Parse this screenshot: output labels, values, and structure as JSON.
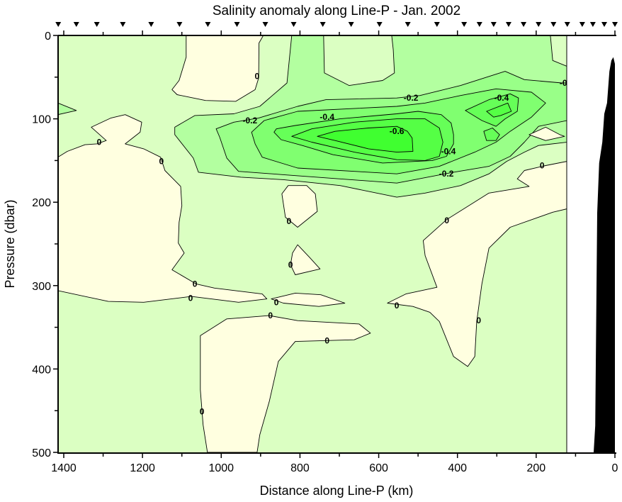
{
  "chart_data": {
    "type": "contour",
    "title": "Salinity anomaly along Line-P - Jan. 2002",
    "xlabel": "Distance along Line-P (km)",
    "ylabel": "Pressure (dbar)",
    "xlim": [
      1414,
      0
    ],
    "ylim": [
      500,
      0
    ],
    "x_reversed": true,
    "y_reversed": true,
    "xticks_major": [
      1400,
      1200,
      1000,
      800,
      600,
      400,
      200,
      0
    ],
    "xticks_minor": [
      1300,
      1100,
      900,
      700,
      500,
      300,
      100
    ],
    "yticks_major": [
      0,
      100,
      200,
      300,
      400,
      500
    ],
    "yticks_minor": [
      50,
      150,
      250,
      350,
      450
    ],
    "grid": false,
    "no_data_km_range": [
      0,
      122
    ],
    "background_fill": "#DBFFC2",
    "levels": [
      {
        "level": 0.0,
        "fill": "#FFFFE0"
      },
      {
        "level": -0.1,
        "fill": "#B3FFA0"
      },
      {
        "level": -0.2,
        "fill": "#99FF88"
      },
      {
        "level": -0.3,
        "fill": "#80FF70"
      },
      {
        "level": -0.4,
        "fill": "#66FF58"
      },
      {
        "level": -0.5,
        "fill": "#55FF45"
      },
      {
        "level": -0.6,
        "fill": "#40FF30"
      }
    ],
    "regions": [
      {
        "level": -0.1,
        "points": [
          [
            821,
            0
          ],
          [
            740,
            0
          ],
          [
            738,
            45
          ],
          [
            675,
            60
          ],
          [
            590,
            54
          ],
          [
            560,
            45
          ],
          [
            563,
            17
          ],
          [
            567,
            0
          ],
          [
            164,
            0
          ],
          [
            158,
            30
          ],
          [
            122,
            37
          ],
          [
            122,
            128
          ],
          [
            194,
            132
          ],
          [
            230,
            140
          ],
          [
            275,
            151
          ],
          [
            320,
            166
          ],
          [
            392,
            180
          ],
          [
            482,
            189
          ],
          [
            554,
            194
          ],
          [
            698,
            180
          ],
          [
            842,
            173
          ],
          [
            950,
            170
          ],
          [
            1058,
            164
          ],
          [
            1071,
            147
          ],
          [
            1118,
            119
          ],
          [
            1118,
            110
          ],
          [
            1067,
            96
          ],
          [
            968,
            94
          ],
          [
            902,
            85
          ],
          [
            833,
            57
          ]
        ]
      },
      {
        "level": -0.1,
        "points": [
          [
            1415,
            81
          ],
          [
            1368,
            90
          ],
          [
            1415,
            95
          ]
        ]
      },
      {
        "level": -0.2,
        "points": [
          [
            1013,
            112
          ],
          [
            968,
            104
          ],
          [
            905,
            99
          ],
          [
            806,
            85
          ],
          [
            734,
            77
          ],
          [
            554,
            75
          ],
          [
            495,
            72
          ],
          [
            392,
            60
          ],
          [
            279,
            43
          ],
          [
            230,
            53
          ],
          [
            135,
            57
          ],
          [
            122,
            57
          ],
          [
            122,
            102
          ],
          [
            194,
            109
          ],
          [
            230,
            128
          ],
          [
            266,
            145
          ],
          [
            320,
            157
          ],
          [
            410,
            164
          ],
          [
            554,
            177
          ],
          [
            842,
            167
          ],
          [
            956,
            163
          ],
          [
            986,
            147
          ],
          [
            1004,
            122
          ]
        ]
      },
      {
        "level": -0.3,
        "points": [
          [
            923,
            116
          ],
          [
            891,
            102
          ],
          [
            806,
            91
          ],
          [
            554,
            85
          ],
          [
            482,
            81
          ],
          [
            392,
            72
          ],
          [
            302,
            64
          ],
          [
            212,
            68
          ],
          [
            176,
            81
          ],
          [
            212,
            98
          ],
          [
            266,
            115
          ],
          [
            302,
            128
          ],
          [
            356,
            140
          ],
          [
            446,
            157
          ],
          [
            554,
            166
          ],
          [
            806,
            159
          ],
          [
            896,
            146
          ],
          [
            914,
            130
          ]
        ]
      },
      {
        "level": -0.4,
        "points": [
          [
            866,
            116
          ],
          [
            860,
            112
          ],
          [
            812,
            108
          ],
          [
            698,
            100
          ],
          [
            554,
            94
          ],
          [
            500,
            91
          ],
          [
            441,
            95
          ],
          [
            416,
            105
          ],
          [
            410,
            119
          ],
          [
            410,
            130
          ],
          [
            428,
            145
          ],
          [
            464,
            150
          ],
          [
            590,
            153
          ],
          [
            716,
            143
          ],
          [
            794,
            132
          ],
          [
            848,
            125
          ]
        ]
      },
      {
        "level": -0.4,
        "points": [
          [
            380,
            90
          ],
          [
            320,
            77
          ],
          [
            266,
            70
          ],
          [
            245,
            75
          ],
          [
            248,
            91
          ],
          [
            279,
            100
          ],
          [
            302,
            109
          ],
          [
            338,
            102
          ]
        ]
      },
      {
        "level": -0.4,
        "points": [
          [
            333,
            115
          ],
          [
            311,
            111
          ],
          [
            293,
            119
          ],
          [
            302,
            126
          ],
          [
            326,
            126
          ]
        ]
      },
      {
        "level": -0.5,
        "points": [
          [
            821,
            121
          ],
          [
            770,
            112
          ],
          [
            662,
            104
          ],
          [
            554,
            100
          ],
          [
            482,
            100
          ],
          [
            446,
            111
          ],
          [
            437,
            128
          ],
          [
            446,
            145
          ],
          [
            482,
            150
          ],
          [
            554,
            149
          ],
          [
            662,
            140
          ],
          [
            770,
            128
          ]
        ]
      },
      {
        "level": -0.5,
        "points": [
          [
            326,
            91
          ],
          [
            272,
            81
          ],
          [
            263,
            91
          ],
          [
            290,
            96
          ],
          [
            308,
            98
          ]
        ]
      },
      {
        "level": -0.6,
        "points": [
          [
            756,
            121
          ],
          [
            711,
            115
          ],
          [
            626,
            111
          ],
          [
            554,
            109
          ],
          [
            527,
            115
          ],
          [
            515,
            123
          ],
          [
            513,
            139
          ],
          [
            554,
            140
          ],
          [
            626,
            136
          ],
          [
            711,
            126
          ]
        ]
      },
      {
        "level": 0.0,
        "points": [
          [
            1415,
            146
          ],
          [
            1391,
            139
          ],
          [
            1346,
            131
          ],
          [
            1316,
            130
          ],
          [
            1292,
            126
          ],
          [
            1330,
            110
          ],
          [
            1280,
            99
          ],
          [
            1244,
            95
          ],
          [
            1202,
            104
          ],
          [
            1206,
            116
          ],
          [
            1244,
            130
          ],
          [
            1197,
            136
          ],
          [
            1154,
            146
          ],
          [
            1143,
            162
          ],
          [
            1103,
            181
          ],
          [
            1100,
            204
          ],
          [
            1107,
            224
          ],
          [
            1109,
            249
          ],
          [
            1094,
            261
          ],
          [
            1125,
            281
          ],
          [
            1064,
            298
          ],
          [
            1017,
            303
          ],
          [
            896,
            310
          ],
          [
            884,
            316
          ],
          [
            956,
            320
          ],
          [
            1076,
            313
          ],
          [
            1197,
            320
          ],
          [
            1287,
            319
          ],
          [
            1415,
            306
          ]
        ]
      },
      {
        "level": 0.0,
        "points": [
          [
            873,
            316
          ],
          [
            812,
            309
          ],
          [
            747,
            311
          ],
          [
            686,
            321
          ],
          [
            752,
            325
          ],
          [
            842,
            321
          ]
        ]
      },
      {
        "level": 0.0,
        "points": [
          [
            1053,
            360
          ],
          [
            986,
            340
          ],
          [
            878,
            336
          ],
          [
            806,
            342
          ],
          [
            650,
            346
          ],
          [
            621,
            357
          ],
          [
            662,
            365
          ],
          [
            812,
            367
          ],
          [
            855,
            391
          ],
          [
            878,
            439
          ],
          [
            902,
            479
          ],
          [
            909,
            500
          ],
          [
            1035,
            500
          ],
          [
            1046,
            467
          ],
          [
            1053,
            425
          ]
        ]
      },
      {
        "level": 0.0,
        "points": [
          [
            578,
            321
          ],
          [
            531,
            310
          ],
          [
            452,
            302
          ],
          [
            482,
            264
          ],
          [
            487,
            246
          ],
          [
            428,
            221
          ],
          [
            320,
            189
          ],
          [
            218,
            181
          ],
          [
            248,
            172
          ],
          [
            230,
            162
          ],
          [
            176,
            156
          ],
          [
            122,
            151
          ],
          [
            122,
            208
          ],
          [
            158,
            212
          ],
          [
            266,
            230
          ],
          [
            320,
            255
          ],
          [
            338,
            298
          ],
          [
            351,
            343
          ],
          [
            356,
            385
          ],
          [
            374,
            397
          ],
          [
            410,
            385
          ],
          [
            446,
            343
          ],
          [
            470,
            332
          ],
          [
            513,
            325
          ]
        ]
      },
      {
        "level": 0.0,
        "points": [
          [
            218,
            119
          ],
          [
            176,
            110
          ],
          [
            140,
            119
          ],
          [
            128,
            121
          ],
          [
            176,
            126
          ]
        ]
      },
      {
        "level": 0.0,
        "points": [
          [
            1089,
            0
          ],
          [
            1089,
            26
          ],
          [
            1107,
            54
          ],
          [
            1125,
            65
          ],
          [
            1112,
            71
          ],
          [
            1040,
            78
          ],
          [
            963,
            79
          ],
          [
            914,
            65
          ],
          [
            905,
            51
          ],
          [
            904,
            9
          ],
          [
            893,
            0
          ]
        ]
      },
      {
        "level": 0.0,
        "points": [
          [
            846,
            190
          ],
          [
            830,
            180
          ],
          [
            783,
            180
          ],
          [
            761,
            190
          ],
          [
            756,
            211
          ],
          [
            806,
            230
          ],
          [
            837,
            218
          ]
        ]
      },
      {
        "level": 0.0,
        "points": [
          [
            806,
            251
          ],
          [
            776,
            266
          ],
          [
            749,
            280
          ],
          [
            812,
            287
          ],
          [
            824,
            275
          ],
          [
            819,
            261
          ]
        ]
      }
    ],
    "contour_labels": [
      {
        "text": "0",
        "km": 1310,
        "dbar": 128
      },
      {
        "text": "0",
        "km": 1152,
        "dbar": 151
      },
      {
        "text": "0",
        "km": 909,
        "dbar": 49
      },
      {
        "text": "0",
        "km": 828,
        "dbar": 223
      },
      {
        "text": "0",
        "km": 824,
        "dbar": 275
      },
      {
        "text": "0",
        "km": 1067,
        "dbar": 298
      },
      {
        "text": "0",
        "km": 1078,
        "dbar": 315
      },
      {
        "text": "0",
        "km": 860,
        "dbar": 320
      },
      {
        "text": "0",
        "km": 875,
        "dbar": 336
      },
      {
        "text": "0",
        "km": 731,
        "dbar": 366
      },
      {
        "text": "0",
        "km": 554,
        "dbar": 324
      },
      {
        "text": "0",
        "km": 346,
        "dbar": 342
      },
      {
        "text": "0",
        "km": 427,
        "dbar": 222
      },
      {
        "text": "0",
        "km": 185,
        "dbar": 156
      },
      {
        "text": "0",
        "km": 1049,
        "dbar": 451
      },
      {
        "text": "-0.2",
        "km": 927,
        "dbar": 102
      },
      {
        "text": "-0.2",
        "km": 518,
        "dbar": 75
      },
      {
        "text": "-0.2",
        "km": 428,
        "dbar": 166
      },
      {
        "text": "-0",
        "km": 131,
        "dbar": 57
      },
      {
        "text": "-0.4",
        "km": 731,
        "dbar": 98
      },
      {
        "text": "-0.4",
        "km": 288,
        "dbar": 75
      },
      {
        "text": "-0.4",
        "km": 423,
        "dbar": 139
      },
      {
        "text": "-0.6",
        "km": 554,
        "dbar": 115
      }
    ],
    "station_markers_km": [
      1414,
      1368,
      1316,
      1250,
      1178,
      1106,
      1034,
      960,
      888,
      816,
      742,
      670,
      598,
      526,
      452,
      383,
      344,
      308,
      270,
      232,
      194,
      156,
      121,
      83,
      56,
      27,
      0
    ],
    "bathymetry": {
      "fill": "#000000",
      "points": [
        [
          54,
          500
        ],
        [
          50,
          468
        ],
        [
          45,
          213
        ],
        [
          40,
          153
        ],
        [
          32,
          128
        ],
        [
          27,
          94
        ],
        [
          20,
          81
        ],
        [
          14,
          43
        ],
        [
          9,
          30
        ],
        [
          4,
          26
        ],
        [
          0,
          34
        ],
        [
          0,
          500
        ]
      ]
    }
  }
}
